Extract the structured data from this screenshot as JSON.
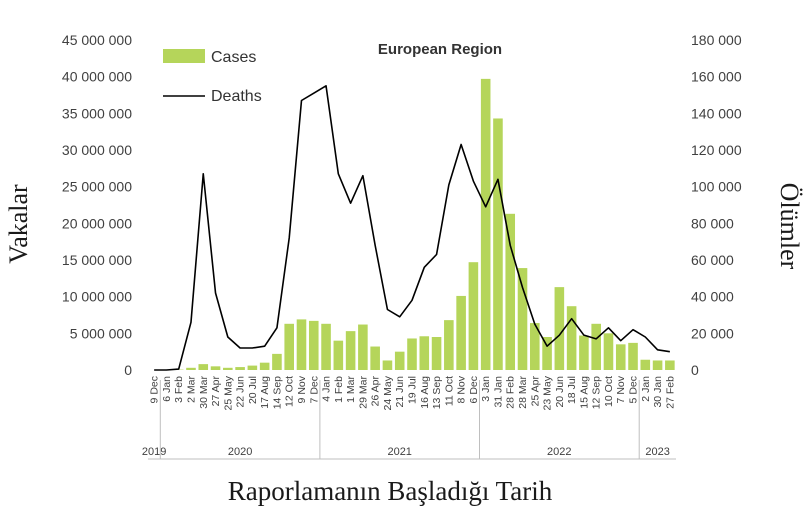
{
  "chart_data": {
    "type": "bar",
    "title": "European Region",
    "xlabel": "Raporlamanın Başladığı Tarih",
    "ylabel_left": "Vakalar",
    "ylabel_right": "Ölümler",
    "ylim_left": [
      0,
      45000000
    ],
    "ylim_right": [
      0,
      180000
    ],
    "yticks_left": [
      "0",
      "5 000 000",
      "10 000 000",
      "15 000 000",
      "20 000 000",
      "25 000 000",
      "30 000 000",
      "35 000 000",
      "40 000 000",
      "45 000 000"
    ],
    "yticks_right": [
      "0",
      "20 000",
      "40 000",
      "60 000",
      "80 000",
      "100 000",
      "120 000",
      "140 000",
      "160 000",
      "180 000"
    ],
    "legend_position": "top-left",
    "colors": {
      "bars": "#b5d55a",
      "line": "#000000"
    },
    "categories": [
      "9 Dec",
      "6 Jan",
      "3 Feb",
      "2 Mar",
      "30 Mar",
      "27 Apr",
      "25 May",
      "22 Jun",
      "20 Jul",
      "17 Aug",
      "14 Sep",
      "12 Oct",
      "9 Nov",
      "7 Dec",
      "4 Jan",
      "1 Feb",
      "1 Mar",
      "29 Mar",
      "26 Apr",
      "24 May",
      "21 Jun",
      "19 Jul",
      "16 Aug",
      "13 Sep",
      "11 Oct",
      "8 Nov",
      "6 Dec",
      "3 Jan",
      "31 Jan",
      "28 Feb",
      "28 Mar",
      "25 Apr",
      "23 May",
      "20 Jun",
      "18 Jul",
      "15 Aug",
      "12 Sep",
      "10 Oct",
      "7 Nov",
      "5 Dec",
      "2 Jan",
      "30 Jan",
      "27 Feb"
    ],
    "years": [
      {
        "label": "2019",
        "start": 0,
        "end": 0
      },
      {
        "label": "2020",
        "start": 1,
        "end": 13
      },
      {
        "label": "2021",
        "start": 14,
        "end": 26
      },
      {
        "label": "2022",
        "start": 27,
        "end": 39
      },
      {
        "label": "2023",
        "start": 40,
        "end": 42
      }
    ],
    "series": [
      {
        "name": "Cases",
        "type": "bar",
        "axis": "left",
        "values": [
          0,
          0,
          50000,
          300000,
          800000,
          500000,
          300000,
          400000,
          600000,
          1000000,
          2200000,
          6300000,
          6900000,
          6700000,
          6300000,
          4000000,
          5300000,
          6200000,
          3200000,
          1300000,
          2500000,
          4300000,
          4600000,
          4500000,
          6800000,
          10100000,
          14700000,
          39700000,
          34300000,
          21300000,
          13900000,
          6400000,
          4500000,
          11300000,
          8700000,
          4700000,
          6300000,
          5000000,
          3500000,
          3700000,
          1400000,
          1300000,
          1300000
        ]
      },
      {
        "name": "Deaths",
        "type": "line",
        "axis": "right",
        "values": [
          0,
          0,
          500,
          26000,
          107000,
          42000,
          18000,
          12000,
          12000,
          13000,
          23000,
          72000,
          147000,
          151000,
          155000,
          107000,
          91000,
          106000,
          68000,
          33000,
          29000,
          38000,
          56000,
          63000,
          101000,
          123000,
          103000,
          89000,
          104000,
          68000,
          45000,
          25000,
          13000,
          19000,
          28000,
          19000,
          17000,
          23000,
          16000,
          22000,
          18000,
          11000,
          10000
        ]
      }
    ]
  }
}
